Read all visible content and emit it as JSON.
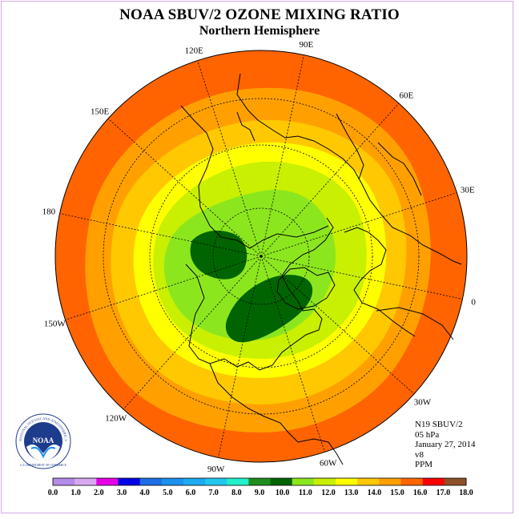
{
  "title": "NOAA SBUV/2 OZONE MIXING RATIO",
  "subtitle": "Northern Hemisphere",
  "longitude_labels": [
    "90E",
    "60E",
    "30E",
    "0",
    "30W",
    "60W",
    "90W",
    "120W",
    "150W",
    "180",
    "150E",
    "120E"
  ],
  "info": {
    "line1": "N19 SBUV/2",
    "line2": "05 hPa",
    "line3": "January 27, 2014",
    "line4": "v8",
    "line5": "PPM"
  },
  "logo": {
    "text": "NOAA",
    "ring_text": "NATIONAL OCEANIC AND ATMOSPHERIC ADMINISTRATION",
    "bottom_text": "U.S. DEPARTMENT OF COMMERCE"
  },
  "colorbar": {
    "labels": [
      "0.0",
      "1.0",
      "2.0",
      "3.0",
      "4.0",
      "5.0",
      "6.0",
      "7.0",
      "8.0",
      "9.0",
      "10.0",
      "11.0",
      "12.0",
      "13.0",
      "14.0",
      "15.0",
      "16.0",
      "17.0",
      "18.0"
    ],
    "colors": [
      "#b38be8",
      "#d7a8f0",
      "#e600e6",
      "#0000e6",
      "#1e6ee6",
      "#1e90ee",
      "#1eaaf0",
      "#22c8f0",
      "#22f0c8",
      "#1e8c1e",
      "#006400",
      "#8ce61e",
      "#c8f000",
      "#ffff00",
      "#ffc800",
      "#ffa000",
      "#ff6400",
      "#ff0000",
      "#8c5028"
    ]
  },
  "colors": {
    "background": "#ffffff",
    "frame": "#d8a8e8"
  }
}
